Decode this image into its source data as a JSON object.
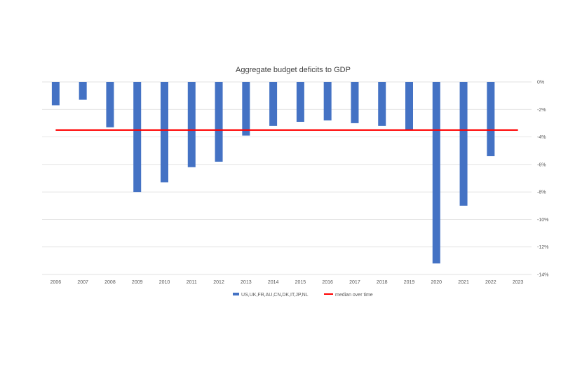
{
  "chart_data": {
    "type": "bar",
    "title": "Aggregate budget deficits to GDP",
    "xlabel": "",
    "ylabel": "",
    "categories": [
      "2006",
      "2007",
      "2008",
      "2009",
      "2010",
      "2011",
      "2012",
      "2013",
      "2014",
      "2015",
      "2016",
      "2017",
      "2018",
      "2019",
      "2020",
      "2021",
      "2022",
      "2023"
    ],
    "series": [
      {
        "name": "US,UK,FR,AU,CN,DK,IT,JP,NL",
        "type": "bar",
        "color": "#4472c4",
        "values": [
          -1.7,
          -1.3,
          -3.3,
          -8.0,
          -7.3,
          -6.2,
          -5.8,
          -3.9,
          -3.2,
          -2.9,
          -2.8,
          -3.0,
          -3.2,
          -3.5,
          -13.2,
          -9.0,
          -5.4,
          null
        ]
      },
      {
        "name": "median over time",
        "type": "line",
        "color": "#ff0000",
        "value": -3.5
      }
    ],
    "ylim": [
      -14,
      0
    ],
    "yticks": [
      0,
      -2,
      -4,
      -6,
      -8,
      -10,
      -12,
      -14
    ],
    "ytick_labels": [
      "0%",
      "-2%",
      "-4%",
      "-6%",
      "-8%",
      "-10%",
      "-12%",
      "-14%"
    ],
    "y_axis_side": "right",
    "grid": true,
    "legend_position": "bottom"
  }
}
